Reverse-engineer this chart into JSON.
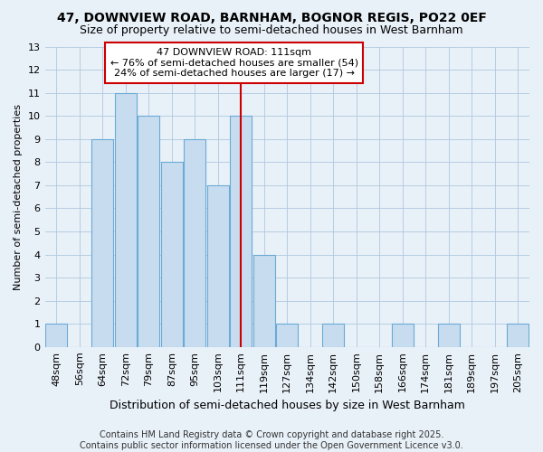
{
  "title1": "47, DOWNVIEW ROAD, BARNHAM, BOGNOR REGIS, PO22 0EF",
  "title2": "Size of property relative to semi-detached houses in West Barnham",
  "xlabel": "Distribution of semi-detached houses by size in West Barnham",
  "ylabel": "Number of semi-detached properties",
  "footnote": "Contains HM Land Registry data © Crown copyright and database right 2025.\nContains public sector information licensed under the Open Government Licence v3.0.",
  "categories": [
    "48sqm",
    "56sqm",
    "64sqm",
    "72sqm",
    "79sqm",
    "87sqm",
    "95sqm",
    "103sqm",
    "111sqm",
    "119sqm",
    "127sqm",
    "134sqm",
    "142sqm",
    "150sqm",
    "158sqm",
    "166sqm",
    "174sqm",
    "181sqm",
    "189sqm",
    "197sqm",
    "205sqm"
  ],
  "values": [
    1,
    0,
    9,
    11,
    10,
    8,
    9,
    7,
    10,
    4,
    1,
    0,
    1,
    0,
    0,
    1,
    0,
    1,
    0,
    0,
    1
  ],
  "bar_color": "#c8dcf0",
  "bar_edge_color": "#6aaad4",
  "highlight_index": 8,
  "red_line_color": "#cc0000",
  "annotation_text": "47 DOWNVIEW ROAD: 111sqm\n← 76% of semi-detached houses are smaller (54)\n24% of semi-detached houses are larger (17) →",
  "annotation_box_color": "#ffffff",
  "annotation_box_edge": "#cc0000",
  "ylim": [
    0,
    13
  ],
  "yticks": [
    0,
    1,
    2,
    3,
    4,
    5,
    6,
    7,
    8,
    9,
    10,
    11,
    12,
    13
  ],
  "background_color": "#e8f0f8",
  "plot_bg_color": "#e8f0f8",
  "grid_color": "#b0c8e0",
  "title1_fontsize": 10,
  "title2_fontsize": 9,
  "xlabel_fontsize": 9,
  "ylabel_fontsize": 8,
  "tick_fontsize": 8,
  "annot_fontsize": 8,
  "footnote_fontsize": 7
}
